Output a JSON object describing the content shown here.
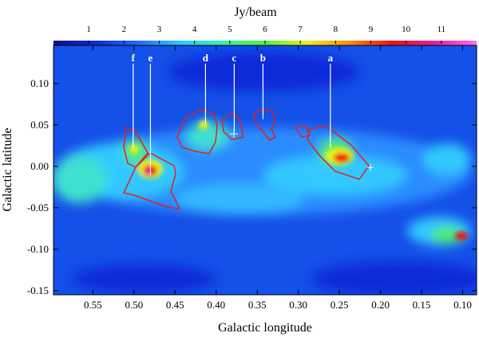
{
  "chart_data": {
    "type": "heatmap",
    "colorbar_label": "Jy/beam",
    "clim": [
      0,
      12
    ],
    "cticks": [
      1,
      2,
      3,
      4,
      5,
      6,
      7,
      8,
      9,
      10,
      11
    ],
    "colormap": [
      "#1a0a8a",
      "#0b2cd9",
      "#1f6cff",
      "#2fc8ff",
      "#39f0b0",
      "#52f040",
      "#e8f020",
      "#ff8a10",
      "#f01010",
      "#e020a0",
      "#ff70e0"
    ],
    "xlabel": "Galactic longitude",
    "ylabel": "Galactic latitude",
    "xlim": [
      0.598,
      0.083
    ],
    "ylim": [
      -0.155,
      0.146
    ],
    "xticks": [
      0.55,
      {
        "value": 0.5,
        "label": "0.50"
      },
      0.45,
      {
        "value": 0.4,
        "label": "0.40"
      },
      0.35,
      {
        "value": 0.3,
        "label": "0.30"
      },
      0.25,
      {
        "value": 0.2,
        "label": "0.20"
      },
      0.15,
      {
        "value": 0.1,
        "label": "0.10"
      }
    ],
    "yticks": [
      {
        "value": 0.1,
        "label": "0.10"
      },
      0.05,
      {
        "value": 0,
        "label": "0.00"
      },
      -0.05,
      {
        "value": -0.1,
        "label": "-0.10"
      },
      -0.15
    ],
    "annotations": [
      {
        "text": "f",
        "x": 0.501,
        "y": 0.023
      },
      {
        "text": "e",
        "x": 0.48,
        "y": -0.011
      },
      {
        "text": "d",
        "x": 0.413,
        "y": 0.052
      },
      {
        "text": "c",
        "x": 0.378,
        "y": 0.042
      },
      {
        "text": "b",
        "x": 0.343,
        "y": 0.057
      },
      {
        "text": "a",
        "x": 0.261,
        "y": 0.023
      }
    ]
  }
}
